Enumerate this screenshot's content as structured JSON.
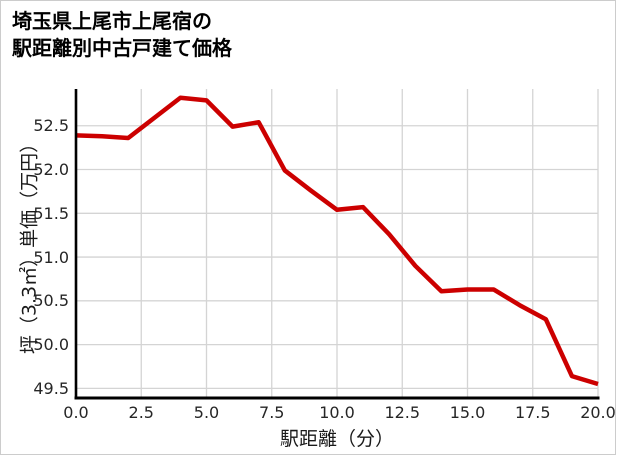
{
  "window": {
    "background": "#ffffff",
    "card_border_color": "#cccccc"
  },
  "header": {
    "title_line1": "埼玉県上尾市上尾宿の",
    "title_line2": "駅距離別中古戸建て価格"
  },
  "chart_data": {
    "type": "line",
    "title": "埼玉県上尾市上尾宿の駅距離別中古戸建て価格",
    "xlabel": "駅距離（分）",
    "ylabel": "坪（3.3㎡）単価（万円）",
    "x": [
      0,
      1,
      2,
      3,
      4,
      5,
      6,
      7,
      8,
      9,
      10,
      11,
      12,
      13,
      14,
      15,
      16,
      17,
      18,
      19,
      20
    ],
    "y": [
      52.39,
      52.38,
      52.36,
      52.59,
      52.82,
      52.79,
      52.49,
      52.54,
      51.99,
      51.76,
      51.54,
      51.57,
      51.26,
      50.9,
      50.61,
      50.63,
      50.63,
      50.45,
      50.29,
      49.64,
      49.55
    ],
    "xlim": [
      0,
      20
    ],
    "ylim": [
      49.39,
      52.92
    ],
    "xticks": [
      0.0,
      2.5,
      5.0,
      7.5,
      10.0,
      12.5,
      15.0,
      17.5,
      20.0
    ],
    "xtick_labels": [
      "0.0",
      "2.5",
      "5.0",
      "7.5",
      "10.0",
      "12.5",
      "15.0",
      "17.5",
      "20.0"
    ],
    "yticks": [
      49.5,
      50.0,
      50.5,
      51.0,
      51.5,
      52.0,
      52.5
    ],
    "ytick_labels": [
      "49.5",
      "50.0",
      "50.5",
      "51.0",
      "51.5",
      "52.0",
      "52.5"
    ],
    "grid": true,
    "legend": "none",
    "line_color": "#cc0000",
    "grid_color": "#d4d4d4",
    "spine_color": "#000000"
  }
}
